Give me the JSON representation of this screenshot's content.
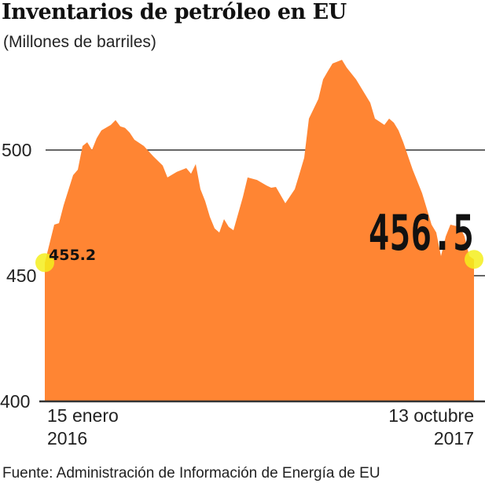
{
  "chart_data": {
    "type": "area",
    "title": "Inventarios de petróleo en EU",
    "subtitle": "(Millones de barriles)",
    "source": "Fuente: Administración de Información de Energía de EU",
    "ylim": [
      400,
      535
    ],
    "yticks": [
      "400",
      "450",
      "500"
    ],
    "grid": "horizontal",
    "x_labels": {
      "start": [
        "15 enero",
        "2016"
      ],
      "end": [
        "13 octubre",
        "2017"
      ]
    },
    "annotations": {
      "start_value": "455.2",
      "end_value": "456.5"
    },
    "colors": {
      "area": "#ff8533",
      "highlight": "#f5ef1c",
      "grid": "#333333"
    },
    "points": [
      {
        "date": "2016-01-15",
        "value": 455.2
      },
      {
        "date": "2016-01-29",
        "value": 470.3
      },
      {
        "date": "2016-02-05",
        "value": 470.9
      },
      {
        "date": "2016-02-12",
        "value": 478.1
      },
      {
        "date": "2016-02-26",
        "value": 490.0
      },
      {
        "date": "2016-03-04",
        "value": 492.2
      },
      {
        "date": "2016-03-11",
        "value": 501.6
      },
      {
        "date": "2016-03-18",
        "value": 503.1
      },
      {
        "date": "2016-03-25",
        "value": 500.0
      },
      {
        "date": "2016-04-01",
        "value": 504.7
      },
      {
        "date": "2016-04-08",
        "value": 507.8
      },
      {
        "date": "2016-04-22",
        "value": 510.0
      },
      {
        "date": "2016-04-29",
        "value": 511.9
      },
      {
        "date": "2016-05-06",
        "value": 509.4
      },
      {
        "date": "2016-05-13",
        "value": 508.8
      },
      {
        "date": "2016-05-20",
        "value": 506.9
      },
      {
        "date": "2016-05-27",
        "value": 504.1
      },
      {
        "date": "2016-06-10",
        "value": 501.6
      },
      {
        "date": "2016-06-24",
        "value": 497.5
      },
      {
        "date": "2016-07-08",
        "value": 493.8
      },
      {
        "date": "2016-07-15",
        "value": 489.1
      },
      {
        "date": "2016-07-29",
        "value": 491.3
      },
      {
        "date": "2016-08-12",
        "value": 492.8
      },
      {
        "date": "2016-08-19",
        "value": 490.6
      },
      {
        "date": "2016-08-26",
        "value": 494.4
      },
      {
        "date": "2016-09-02",
        "value": 484.4
      },
      {
        "date": "2016-09-09",
        "value": 479.7
      },
      {
        "date": "2016-09-16",
        "value": 473.4
      },
      {
        "date": "2016-09-23",
        "value": 468.8
      },
      {
        "date": "2016-09-30",
        "value": 467.2
      },
      {
        "date": "2016-10-07",
        "value": 472.5
      },
      {
        "date": "2016-10-14",
        "value": 469.4
      },
      {
        "date": "2016-10-21",
        "value": 468.1
      },
      {
        "date": "2016-11-04",
        "value": 481.3
      },
      {
        "date": "2016-11-11",
        "value": 489.1
      },
      {
        "date": "2016-11-25",
        "value": 488.1
      },
      {
        "date": "2016-12-09",
        "value": 485.9
      },
      {
        "date": "2016-12-16",
        "value": 485.0
      },
      {
        "date": "2016-12-23",
        "value": 485.3
      },
      {
        "date": "2017-01-06",
        "value": 478.8
      },
      {
        "date": "2017-01-20",
        "value": 484.4
      },
      {
        "date": "2017-01-27",
        "value": 490.6
      },
      {
        "date": "2017-02-03",
        "value": 496.9
      },
      {
        "date": "2017-02-10",
        "value": 512.5
      },
      {
        "date": "2017-02-24",
        "value": 520.3
      },
      {
        "date": "2017-03-03",
        "value": 528.1
      },
      {
        "date": "2017-03-10",
        "value": 531.3
      },
      {
        "date": "2017-03-17",
        "value": 534.4
      },
      {
        "date": "2017-03-31",
        "value": 535.9
      },
      {
        "date": "2017-04-07",
        "value": 532.8
      },
      {
        "date": "2017-04-21",
        "value": 528.1
      },
      {
        "date": "2017-05-12",
        "value": 518.8
      },
      {
        "date": "2017-05-19",
        "value": 512.5
      },
      {
        "date": "2017-06-02",
        "value": 510.0
      },
      {
        "date": "2017-06-09",
        "value": 512.5
      },
      {
        "date": "2017-06-16",
        "value": 510.9
      },
      {
        "date": "2017-06-23",
        "value": 507.8
      },
      {
        "date": "2017-06-30",
        "value": 503.1
      },
      {
        "date": "2017-07-14",
        "value": 492.2
      },
      {
        "date": "2017-07-28",
        "value": 482.8
      },
      {
        "date": "2017-08-04",
        "value": 476.6
      },
      {
        "date": "2017-08-11",
        "value": 470.3
      },
      {
        "date": "2017-08-18",
        "value": 467.2
      },
      {
        "date": "2017-08-25",
        "value": 457.8
      },
      {
        "date": "2017-09-01",
        "value": 465.6
      },
      {
        "date": "2017-09-08",
        "value": 470.3
      },
      {
        "date": "2017-09-22",
        "value": 469.4
      },
      {
        "date": "2017-09-29",
        "value": 465.6
      },
      {
        "date": "2017-10-06",
        "value": 457.8
      },
      {
        "date": "2017-10-13",
        "value": 456.5
      }
    ]
  }
}
